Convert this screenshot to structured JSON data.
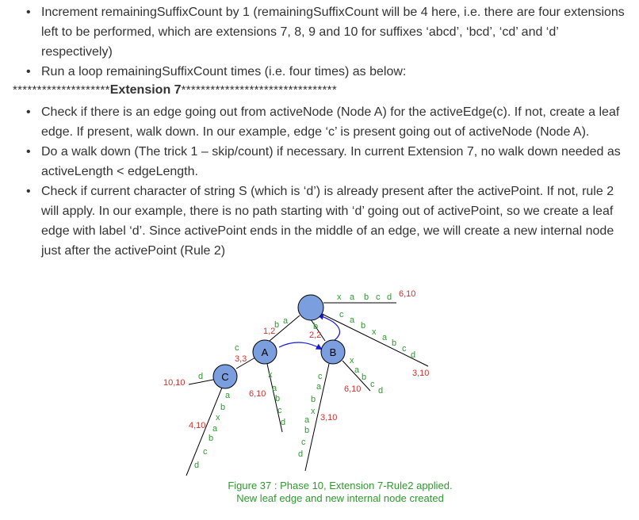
{
  "bullets_top": [
    "Increment remainingSuffixCount by 1 (remainingSuffixCount will be 4 here, i.e. there are four extensions left to be performed, which are extensions 7, 8, 9 and 10 for suffixes ‘abcd’, ‘bcd’, ‘cd’ and ‘d’ respectively)",
    "Run a loop remainingSuffixCount times (i.e. four times) as below:"
  ],
  "extension_line": {
    "stars_left": "********************",
    "label": "Extension 7",
    "stars_right": "********************************"
  },
  "bullets_bottom": [
    "Check if there is an edge going out from activeNode (Node A) for the activeEdge(c). If not, create a leaf edge. If present, walk down. In our example, edge ‘c’ is present going out of activeNode (Node A).",
    "Do a walk down (The trick 1 – skip/count) if necessary. In current Extension 7, no walk down needed as activeLength < edgeLength.",
    "Check if current character of string S (which is ‘d’) is already present after the activePoint. If not, rule 2 will apply. In our example, there is no path starting with ‘d’ going out of activePoint, so we create a leaf edge with label ‘d’. Since activePoint ends in the middle of an edge, we will create a new internal node just after the activePoint (Rule 2)"
  ],
  "figure": {
    "caption_line1": "Figure 37 : Phase 10, Extension 7-Rule2 applied.",
    "caption_line2": "New leaf edge and new internal node created",
    "nodes": {
      "A": "A",
      "B": "B",
      "C": "C"
    },
    "edge_labels": {
      "root_top": {
        "chars": [
          "x",
          "a",
          "b",
          "c",
          "d"
        ],
        "index": "6,10"
      },
      "root_right": {
        "chars": [
          "c",
          "a",
          "b",
          "x",
          "a",
          "b",
          "c",
          "d"
        ],
        "index": "3,10"
      },
      "root_a": {
        "chars": [
          "a",
          "b"
        ],
        "index": "1,2"
      },
      "root_b": {
        "chars": [
          "b"
        ],
        "index": "2,2"
      },
      "a_c": {
        "chars": [
          "c"
        ],
        "index": "3,3"
      },
      "a_leaf": {
        "chars": [
          "x",
          "a",
          "b",
          "c",
          "d"
        ],
        "index": "6,10"
      },
      "c_leaf_d": {
        "chars": [
          "d"
        ],
        "index": "10,10"
      },
      "c_leaf_long": {
        "chars": [
          "a",
          "b",
          "x",
          "a",
          "b",
          "c",
          "d"
        ],
        "index": "4,10"
      },
      "b_left": {
        "chars": [
          "c",
          "a",
          "b",
          "x",
          "a",
          "b",
          "c",
          "d"
        ],
        "index": "3,10"
      },
      "b_right": {
        "chars": [
          "x",
          "a",
          "b",
          "c",
          "d"
        ],
        "index": "6,10"
      }
    },
    "colors": {
      "node_fill": "#7b9fde",
      "edge": "#000000",
      "edge_char": "#2e9a2e",
      "index": "#d0312d",
      "suffix_link": "#1a1ad6",
      "caption": "#2e9a2e"
    }
  }
}
